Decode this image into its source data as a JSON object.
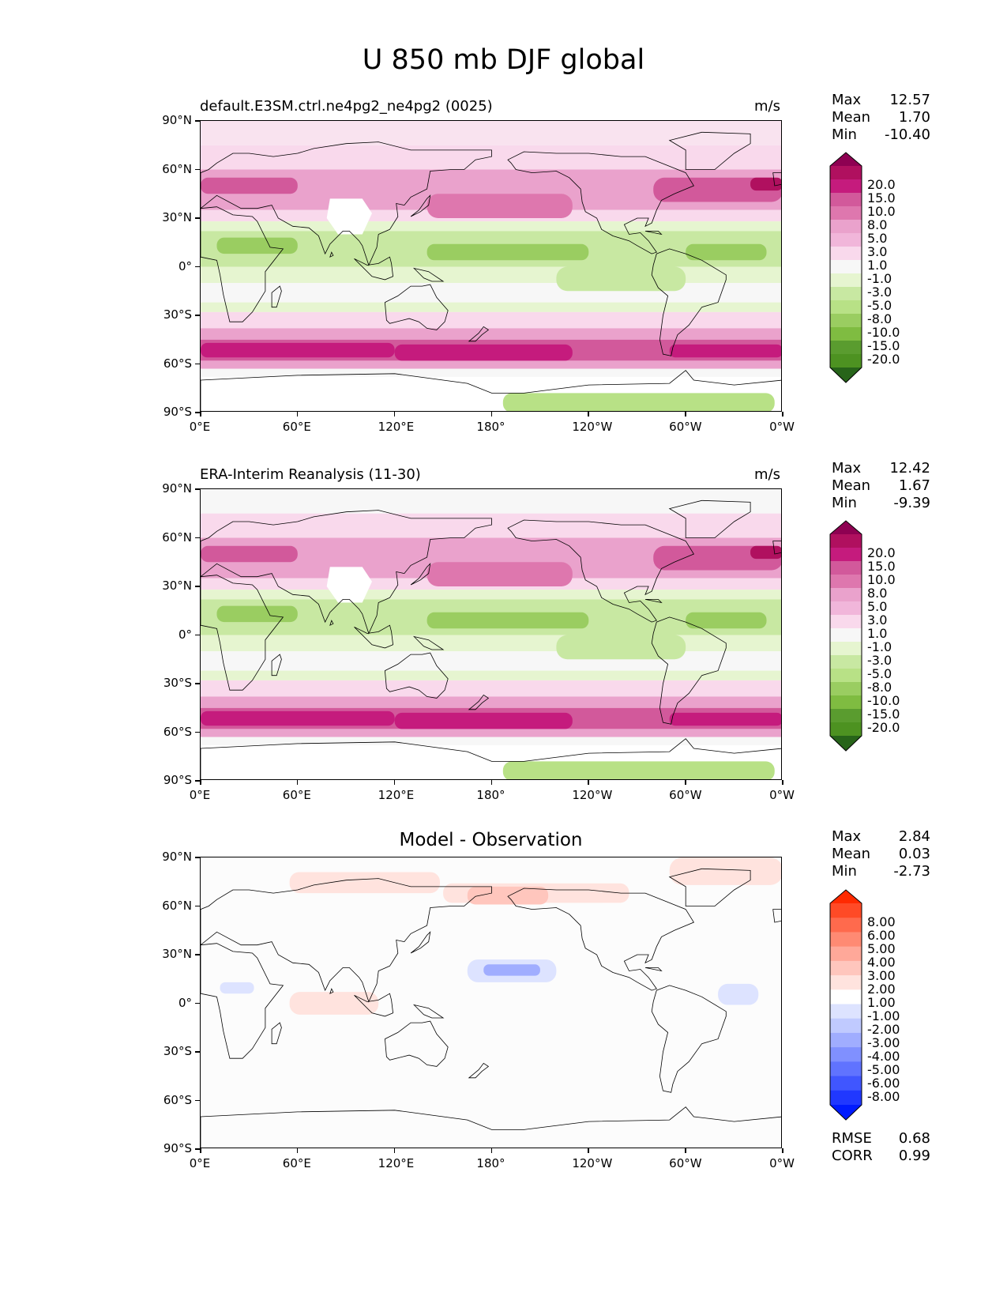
{
  "figure": {
    "title": "U 850 mb DJF global"
  },
  "axes": {
    "lat_labels": [
      "90°N",
      "60°N",
      "30°N",
      "0°",
      "30°S",
      "60°S",
      "90°S"
    ],
    "lon_labels": [
      "0°E",
      "60°E",
      "120°E",
      "180°",
      "120°W",
      "60°W",
      "0°W"
    ]
  },
  "panels": [
    {
      "title": "default.E3SM.ctrl.ne4pg2_ne4pg2 (0025)",
      "units": "m/s",
      "stats": [
        {
          "label": "Max",
          "value": "12.57"
        },
        {
          "label": "Mean",
          "value": "1.70"
        },
        {
          "label": "Min",
          "value": "-10.40"
        }
      ],
      "colorbar_labels": [
        "20.0",
        "15.0",
        "10.0",
        "8.0",
        "5.0",
        "3.0",
        "1.0",
        "-1.0",
        "-3.0",
        "-5.0",
        "-8.0",
        "-10.0",
        "-15.0",
        "-20.0"
      ],
      "colormap": "PiYG"
    },
    {
      "title": "ERA-Interim Reanalysis (11-30)",
      "units": "m/s",
      "stats": [
        {
          "label": "Max",
          "value": "12.42"
        },
        {
          "label": "Mean",
          "value": "1.67"
        },
        {
          "label": "Min",
          "value": "-9.39"
        }
      ],
      "colorbar_labels": [
        "20.0",
        "15.0",
        "10.0",
        "8.0",
        "5.0",
        "3.0",
        "1.0",
        "-1.0",
        "-3.0",
        "-5.0",
        "-8.0",
        "-10.0",
        "-15.0",
        "-20.0"
      ],
      "colormap": "PiYG"
    },
    {
      "title": "Model - Observation",
      "units": "",
      "stats": [
        {
          "label": "Max",
          "value": "2.84"
        },
        {
          "label": "Mean",
          "value": "0.03"
        },
        {
          "label": "Min",
          "value": "-2.73"
        }
      ],
      "extra_stats": [
        {
          "label": "RMSE",
          "value": "0.68"
        },
        {
          "label": "CORR",
          "value": "0.99"
        }
      ],
      "colorbar_labels": [
        "8.00",
        "6.00",
        "5.00",
        "4.00",
        "3.00",
        "2.00",
        "1.00",
        "-1.00",
        "-2.00",
        "-3.00",
        "-4.00",
        "-5.00",
        "-6.00",
        "-8.00"
      ],
      "colormap": "bwr"
    }
  ],
  "colors": {
    "piyg": [
      "#8e0152",
      "#b0105f",
      "#c51b7d",
      "#d2599b",
      "#de77ae",
      "#eaa2cc",
      "#f1b6da",
      "#f9d9ec",
      "#f7f7f7",
      "#e6f5d0",
      "#c8e8a2",
      "#b8e186",
      "#9acd61",
      "#7fbc41",
      "#5a9c2f",
      "#4d9221",
      "#276419"
    ],
    "bwr": [
      "#ff2a00",
      "#ff4a26",
      "#ff6a4d",
      "#ff8a73",
      "#ffa899",
      "#ffc6bd",
      "#ffe3de",
      "#ffffff",
      "#dde3ff",
      "#c0caff",
      "#a0adff",
      "#8090ff",
      "#6073ff",
      "#4056ff",
      "#2038ff",
      "#001bff"
    ]
  }
}
